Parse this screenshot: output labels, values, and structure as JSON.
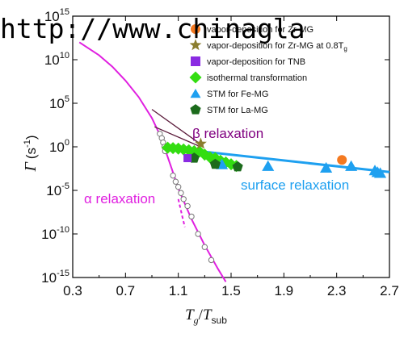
{
  "watermark": "http://www.chinagla",
  "chart_data": {
    "type": "scatter",
    "xlabel_main": "T",
    "xlabel_sub1": "g",
    "xlabel_sep": "/",
    "xlabel_main2": "T",
    "xlabel_sub2": "sub",
    "ylabel_main": "Γ",
    "ylabel_unit": "(s",
    "ylabel_exp": "-1",
    "ylabel_close": ")",
    "xlim": [
      0.3,
      2.7
    ],
    "ylim_log10": [
      -15,
      15
    ],
    "y_scale": "log",
    "x_ticks": [
      0.3,
      0.7,
      1.1,
      1.5,
      1.9,
      2.3,
      2.7
    ],
    "x_tick_labels": [
      "0.3",
      "0.7",
      "1.1",
      "1.5",
      "1.9",
      "2.3",
      "2.7"
    ],
    "y_ticks_log10": [
      -15,
      -10,
      -5,
      0,
      5,
      10,
      15
    ],
    "y_tick_base": "10",
    "y_tick_exps": [
      "-15",
      "-10",
      "-5",
      "0",
      "5",
      "10",
      "15"
    ],
    "legend": [
      {
        "label": "vapor-deposition for Zr-MG",
        "marker": "circle",
        "color": "#F47920"
      },
      {
        "label": "vapor-deposition for Zr-MG at 0.8T",
        "sub": "g",
        "marker": "star",
        "color": "#8B7D2E"
      },
      {
        "label": "vapor-deposition for TNB",
        "marker": "square",
        "color": "#8A2BE2"
      },
      {
        "label": "isothermal transformation",
        "marker": "diamond",
        "color": "#33DD11"
      },
      {
        "label": "STM for Fe-MG",
        "marker": "triangle",
        "color": "#1EA0F0"
      },
      {
        "label": "STM for La-MG",
        "marker": "pentagon",
        "color": "#1C6B1C"
      }
    ],
    "annotations": {
      "alpha": {
        "text": "α relaxation",
        "color": "#E020E0"
      },
      "beta": {
        "text": "β relaxation",
        "color": "#800080"
      },
      "surface": {
        "text": "surface relaxation",
        "color": "#1EA0F0"
      }
    },
    "alpha_curve": [
      [
        0.35,
        12.0
      ],
      [
        0.5,
        10.5
      ],
      [
        0.6,
        9.2
      ],
      [
        0.7,
        7.6
      ],
      [
        0.8,
        5.7
      ],
      [
        0.9,
        3.3
      ],
      [
        0.95,
        1.7
      ],
      [
        1.0,
        -0.3
      ],
      [
        1.05,
        -2.5
      ],
      [
        1.1,
        -4.8
      ],
      [
        1.2,
        -8.3
      ],
      [
        1.3,
        -11.3
      ],
      [
        1.4,
        -14.0
      ],
      [
        1.46,
        -15.5
      ]
    ],
    "alpha_dashed": [
      [
        1.1,
        -6.0
      ],
      [
        1.13,
        -8.0
      ],
      [
        1.15,
        -9.2
      ]
    ],
    "alpha_open_circles": [
      [
        0.96,
        1.5
      ],
      [
        0.975,
        1.0
      ],
      [
        0.985,
        0.5
      ],
      [
        0.995,
        0.0
      ],
      [
        1.0,
        -0.5
      ],
      [
        1.06,
        -3.3
      ],
      [
        1.08,
        -4.0
      ],
      [
        1.1,
        -4.6
      ],
      [
        1.12,
        -5.3
      ],
      [
        1.14,
        -6.0
      ],
      [
        1.17,
        -6.8
      ],
      [
        1.2,
        -8.0
      ],
      [
        1.25,
        -10.0
      ],
      [
        1.3,
        -11.5
      ],
      [
        1.35,
        -13.0
      ]
    ],
    "beta_line_upper": [
      [
        0.9,
        4.3
      ],
      [
        1.27,
        0.3
      ]
    ],
    "beta_line_lower": [
      [
        0.92,
        2.3
      ],
      [
        1.27,
        0.0
      ]
    ],
    "surface_line": [
      [
        1.02,
        -0.1
      ],
      [
        2.7,
        -2.9
      ]
    ],
    "series_zr_circle": [
      [
        2.34,
        -1.5
      ]
    ],
    "series_zr_star": [
      [
        1.27,
        0.35
      ]
    ],
    "series_tnb_square": [
      [
        1.17,
        -1.3
      ]
    ],
    "series_iso_diamond": [
      [
        1.02,
        -0.1
      ],
      [
        1.06,
        -0.15
      ],
      [
        1.1,
        -0.2
      ],
      [
        1.14,
        -0.3
      ],
      [
        1.18,
        -0.4
      ],
      [
        1.22,
        -0.5
      ],
      [
        1.26,
        -0.55
      ],
      [
        1.3,
        -0.9
      ],
      [
        1.34,
        -1.2
      ],
      [
        1.38,
        -1.3
      ],
      [
        1.42,
        -1.6
      ],
      [
        1.46,
        -1.8
      ],
      [
        1.5,
        -2.0
      ],
      [
        1.54,
        -2.2
      ]
    ],
    "series_fe_triangle": [
      [
        1.43,
        -2.0
      ],
      [
        1.78,
        -2.2
      ],
      [
        2.22,
        -2.4
      ],
      [
        2.41,
        -2.2
      ],
      [
        2.59,
        -2.7
      ],
      [
        2.61,
        -2.9
      ],
      [
        2.63,
        -3.0
      ]
    ],
    "series_la_pentagon": [
      [
        1.22,
        -1.3
      ],
      [
        1.38,
        -2.0
      ],
      [
        1.55,
        -2.3
      ]
    ]
  }
}
